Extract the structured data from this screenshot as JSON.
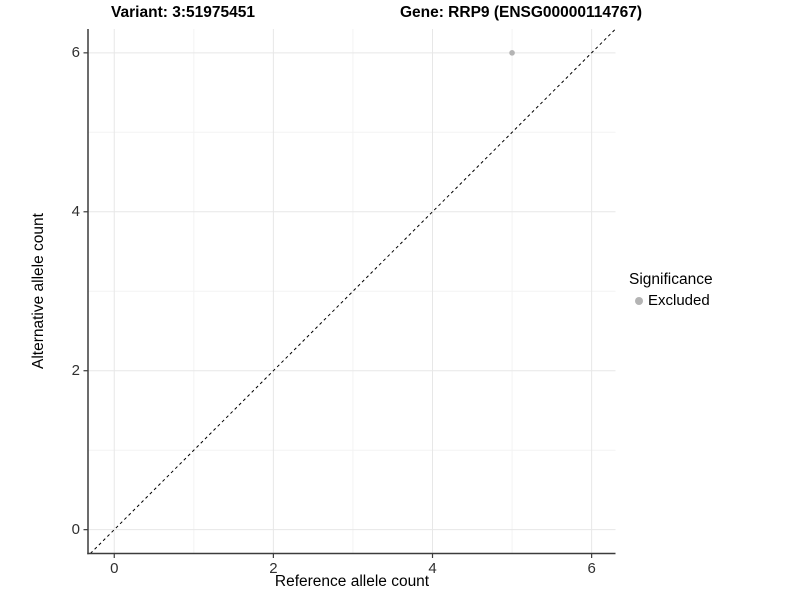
{
  "chart_data": {
    "type": "scatter",
    "title_left": "Variant: 3:51975451",
    "title_right": "Gene: RRP9 (ENSG00000114767)",
    "xlabel": "Reference allele count",
    "ylabel": "Alternative allele count",
    "xlim": [
      -0.33,
      6.3
    ],
    "ylim": [
      -0.3,
      6.3
    ],
    "x_ticks": [
      0,
      2,
      4,
      6
    ],
    "y_ticks": [
      0,
      2,
      4,
      6
    ],
    "x_minor_ticks": [
      1,
      3,
      5
    ],
    "y_minor_ticks": [
      1,
      3,
      5
    ],
    "grid": "major+minor",
    "identity_line": {
      "slope": 1,
      "intercept": 0,
      "style": "dashed",
      "color": "#000000"
    },
    "series": [
      {
        "name": "Excluded",
        "color": "#b4b4b4",
        "points": [
          {
            "x": 5,
            "y": 6
          }
        ]
      }
    ],
    "legend": {
      "title": "Significance",
      "position": "right",
      "items": [
        {
          "label": "Excluded",
          "color": "#b4b4b4"
        }
      ]
    },
    "colors": {
      "grid_major": "#e7e7e7",
      "grid_minor": "#f3f3f3",
      "axis_line": "#3c3c3c",
      "tick_mark": "#3c3c3c",
      "tick_label": "#303030"
    }
  }
}
